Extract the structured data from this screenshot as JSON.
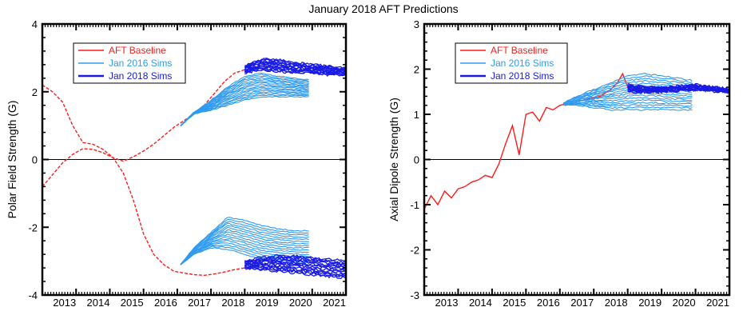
{
  "title": "January 2018 AFT Predictions",
  "colors": {
    "baseline": "#ff1a1a",
    "sims2016": "#2f9bf0",
    "sims2018": "#1a1ae6",
    "axis": "#000000"
  },
  "chart_data": [
    {
      "type": "line",
      "ylabel": "Polar Field Strength (G)",
      "xlabel": "",
      "xlim": [
        2012.0,
        2021.0
      ],
      "ylim": [
        -4,
        4
      ],
      "yticks": [
        -4,
        -2,
        0,
        2,
        4
      ],
      "xticks": [
        2013,
        2014,
        2015,
        2016,
        2017,
        2018,
        2019,
        2020,
        2021
      ],
      "zero_line": true,
      "legend": {
        "placement": "top-left",
        "entries": [
          "AFT Baseline",
          "Jan 2016 Sims",
          "Jan 2018 Sims"
        ]
      },
      "series": [
        {
          "name": "AFT Baseline",
          "style": "dashed",
          "color": "baseline",
          "x": [
            2012.0,
            2012.3,
            2012.6,
            2012.9,
            2013.2,
            2013.5,
            2013.8,
            2014.1,
            2014.4,
            2014.7,
            2015.0,
            2015.3,
            2015.6,
            2015.9,
            2016.2,
            2016.5,
            2016.8,
            2017.1,
            2017.4,
            2017.7,
            2018.0
          ],
          "y": [
            -0.8,
            -0.45,
            -0.1,
            0.15,
            0.32,
            0.3,
            0.2,
            0.05,
            -0.05,
            0.08,
            0.25,
            0.45,
            0.7,
            0.95,
            1.15,
            1.35,
            1.6,
            1.95,
            2.3,
            2.55,
            2.65
          ]
        },
        {
          "name": "AFT Baseline",
          "style": "dashed",
          "color": "baseline",
          "x": [
            2012.0,
            2012.3,
            2012.6,
            2012.9,
            2013.2,
            2013.5,
            2013.8,
            2014.1,
            2014.4,
            2014.7,
            2015.0,
            2015.3,
            2015.6,
            2015.9,
            2016.2,
            2016.5,
            2016.8,
            2017.1,
            2017.4,
            2017.7,
            2018.0
          ],
          "y": [
            2.2,
            2.0,
            1.7,
            1.0,
            0.5,
            0.45,
            0.3,
            0.05,
            -0.4,
            -1.2,
            -2.2,
            -2.8,
            -3.1,
            -3.3,
            -3.35,
            -3.4,
            -3.42,
            -3.38,
            -3.32,
            -3.25,
            -3.2
          ]
        },
        {
          "name": "Jan 2016 Sims",
          "style": "band",
          "color": "sims2016",
          "x": [
            2016.1,
            2016.5,
            2017.0,
            2017.5,
            2018.0,
            2018.5,
            2019.0,
            2019.5,
            2019.9
          ],
          "y_upper": [
            1.0,
            1.4,
            1.75,
            2.15,
            2.45,
            2.55,
            2.45,
            2.4,
            2.35
          ],
          "y_lower": [
            1.0,
            1.35,
            1.45,
            1.6,
            1.75,
            1.85,
            1.85,
            1.85,
            1.85
          ]
        },
        {
          "name": "Jan 2016 Sims",
          "style": "band",
          "color": "sims2016",
          "x": [
            2016.1,
            2016.5,
            2017.0,
            2017.5,
            2018.0,
            2018.5,
            2019.0,
            2019.5,
            2019.9
          ],
          "y_upper": [
            -3.1,
            -2.6,
            -2.15,
            -1.7,
            -1.8,
            -1.95,
            -2.05,
            -2.1,
            -2.1
          ],
          "y_lower": [
            -3.1,
            -2.8,
            -2.6,
            -2.65,
            -2.8,
            -2.95,
            -3.0,
            -3.05,
            -3.05
          ]
        },
        {
          "name": "Jan 2018 Sims",
          "style": "band",
          "color": "sims2018",
          "x": [
            2018.0,
            2018.5,
            2019.0,
            2019.5,
            2020.0,
            2020.5,
            2021.0
          ],
          "y_upper": [
            2.75,
            2.95,
            2.95,
            2.85,
            2.8,
            2.75,
            2.7
          ],
          "y_lower": [
            2.55,
            2.65,
            2.6,
            2.55,
            2.55,
            2.5,
            2.5
          ]
        },
        {
          "name": "Jan 2018 Sims",
          "style": "band",
          "color": "sims2018",
          "x": [
            2018.0,
            2018.5,
            2019.0,
            2019.5,
            2020.0,
            2020.5,
            2021.0
          ],
          "y_upper": [
            -3.0,
            -2.9,
            -2.85,
            -2.85,
            -2.9,
            -2.95,
            -3.0
          ],
          "y_lower": [
            -3.2,
            -3.25,
            -3.3,
            -3.35,
            -3.4,
            -3.45,
            -3.5
          ]
        }
      ]
    },
    {
      "type": "line",
      "ylabel": "Axial Dipole Strength (G)",
      "xlabel": "",
      "xlim": [
        2012.0,
        2021.0
      ],
      "ylim": [
        -3,
        3
      ],
      "yticks": [
        -3,
        -2,
        -1,
        0,
        1,
        2,
        3
      ],
      "xticks": [
        2013,
        2014,
        2015,
        2016,
        2017,
        2018,
        2019,
        2020,
        2021
      ],
      "zero_line": true,
      "legend": {
        "placement": "top-left",
        "entries": [
          "AFT Baseline",
          "Jan 2016 Sims",
          "Jan 2018 Sims"
        ]
      },
      "series": [
        {
          "name": "AFT Baseline",
          "style": "solid",
          "color": "baseline",
          "x": [
            2012.0,
            2012.2,
            2012.4,
            2012.6,
            2012.8,
            2013.0,
            2013.2,
            2013.4,
            2013.6,
            2013.8,
            2014.0,
            2014.2,
            2014.4,
            2014.6,
            2014.8,
            2015.0,
            2015.2,
            2015.4,
            2015.6,
            2015.8,
            2016.0,
            2016.3,
            2016.6,
            2016.9,
            2017.2,
            2017.5,
            2017.7,
            2017.85,
            2018.0
          ],
          "y": [
            -1.1,
            -0.8,
            -1.0,
            -0.7,
            -0.85,
            -0.65,
            -0.6,
            -0.5,
            -0.45,
            -0.35,
            -0.4,
            -0.1,
            0.35,
            0.75,
            0.1,
            1.0,
            1.05,
            0.85,
            1.15,
            1.1,
            1.2,
            1.25,
            1.3,
            1.35,
            1.4,
            1.55,
            1.7,
            1.9,
            1.6
          ]
        },
        {
          "name": "Jan 2016 Sims",
          "style": "band",
          "color": "sims2016",
          "x": [
            2016.1,
            2016.5,
            2017.0,
            2017.5,
            2018.0,
            2018.5,
            2019.0,
            2019.5,
            2019.9
          ],
          "y_upper": [
            1.25,
            1.4,
            1.55,
            1.7,
            1.85,
            1.9,
            1.85,
            1.8,
            1.75
          ],
          "y_lower": [
            1.2,
            1.2,
            1.15,
            1.1,
            1.1,
            1.1,
            1.1,
            1.1,
            1.1
          ]
        },
        {
          "name": "Jan 2018 Sims",
          "style": "band",
          "color": "sims2018",
          "x": [
            2018.0,
            2018.5,
            2019.0,
            2019.5,
            2020.0,
            2020.5,
            2021.0
          ],
          "y_upper": [
            1.65,
            1.6,
            1.6,
            1.62,
            1.65,
            1.6,
            1.55
          ],
          "y_lower": [
            1.5,
            1.5,
            1.5,
            1.52,
            1.55,
            1.52,
            1.5
          ]
        }
      ]
    }
  ]
}
